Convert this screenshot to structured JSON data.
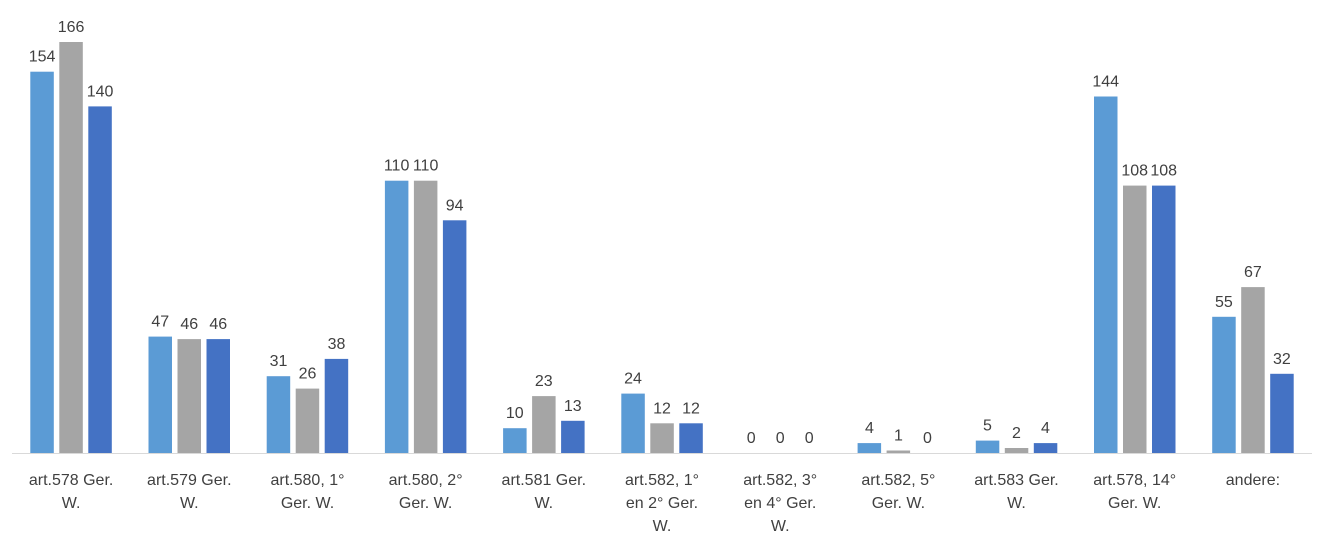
{
  "chart_data": {
    "type": "bar",
    "title": "",
    "xlabel": "",
    "ylabel": "",
    "ylim": [
      0,
      170
    ],
    "grid": false,
    "legend": "none",
    "categories": [
      [
        "art.578 Ger.",
        "W."
      ],
      [
        "art.579 Ger.",
        "W."
      ],
      [
        "art.580, 1°",
        "Ger. W."
      ],
      [
        "art.580, 2°",
        "Ger. W."
      ],
      [
        "art.581 Ger.",
        "W."
      ],
      [
        "art.582, 1°",
        "en 2° Ger.",
        "W."
      ],
      [
        "art.582, 3°",
        "en 4° Ger.",
        "W."
      ],
      [
        "art.582, 5°",
        "Ger. W."
      ],
      [
        "art.583 Ger.",
        "W."
      ],
      [
        "art.578, 14°",
        "Ger. W."
      ],
      [
        "andere:"
      ]
    ],
    "series": [
      {
        "color": "#5B9BD5",
        "values": [
          154,
          47,
          31,
          110,
          10,
          24,
          0,
          4,
          5,
          144,
          55
        ]
      },
      {
        "color": "#A5A5A5",
        "values": [
          166,
          46,
          26,
          110,
          23,
          12,
          0,
          1,
          2,
          108,
          67
        ]
      },
      {
        "color": "#4472C4",
        "values": [
          140,
          46,
          38,
          94,
          13,
          12,
          0,
          0,
          4,
          108,
          32
        ]
      }
    ],
    "axis_color": "#D9D9D9"
  }
}
